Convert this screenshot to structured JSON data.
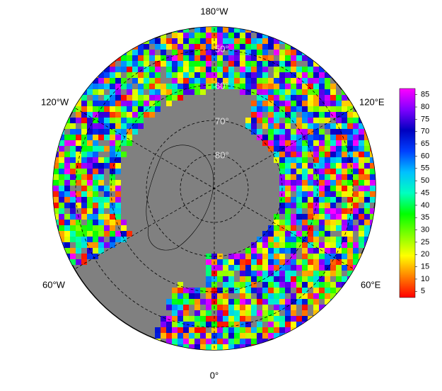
{
  "map": {
    "longitude_labels": [
      "180°W",
      "120°E",
      "60°E",
      "0°",
      "60°W",
      "120°W"
    ],
    "latitude_labels": [
      "50°",
      "60°",
      "70°",
      "80°"
    ],
    "colorbar": {
      "clim": [
        2.5,
        87.5
      ],
      "ticks": [
        5,
        10,
        15,
        20,
        25,
        30,
        35,
        40,
        45,
        50,
        55,
        60,
        65,
        70,
        75,
        80,
        85
      ],
      "colors": [
        "#ff0000",
        "#ff8000",
        "#ffff00",
        "#80ff00",
        "#00ff00",
        "#00ffc0",
        "#00c0ff",
        "#0040ff",
        "#0000c0",
        "#8000ff",
        "#ff00ff"
      ]
    }
  }
}
